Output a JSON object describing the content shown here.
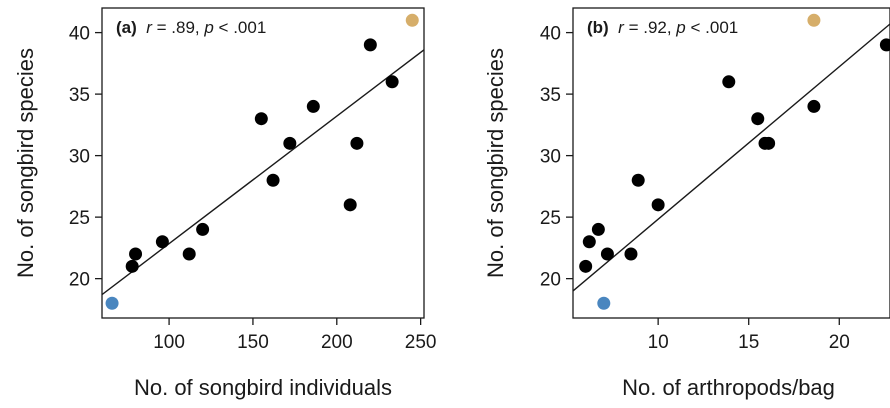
{
  "chart_data": [
    {
      "panel": "(a)",
      "type": "scatter",
      "annotation": {
        "tag": "(a)",
        "r_letter": "r",
        "r_text": " = .89, ",
        "p_letter": "p",
        "p_text": " < .001"
      },
      "xlabel": "No. of songbird individuals",
      "ylabel": "No. of songbird species",
      "xlim": [
        60,
        252
      ],
      "ylim": [
        16.8,
        42
      ],
      "xticks": [
        100,
        150,
        200,
        250
      ],
      "yticks": [
        20,
        25,
        30,
        35,
        40
      ],
      "grid": false,
      "points": [
        {
          "x": 66,
          "y": 18,
          "color": "#4a86bf"
        },
        {
          "x": 78,
          "y": 21,
          "color": "#000000"
        },
        {
          "x": 80,
          "y": 22,
          "color": "#000000"
        },
        {
          "x": 96,
          "y": 23,
          "color": "#000000"
        },
        {
          "x": 112,
          "y": 22,
          "color": "#000000"
        },
        {
          "x": 120,
          "y": 24,
          "color": "#000000"
        },
        {
          "x": 155,
          "y": 33,
          "color": "#000000"
        },
        {
          "x": 162,
          "y": 28,
          "color": "#000000"
        },
        {
          "x": 172,
          "y": 31,
          "color": "#000000"
        },
        {
          "x": 186,
          "y": 34,
          "color": "#000000"
        },
        {
          "x": 208,
          "y": 26,
          "color": "#000000"
        },
        {
          "x": 212,
          "y": 31,
          "color": "#000000"
        },
        {
          "x": 220,
          "y": 39,
          "color": "#000000"
        },
        {
          "x": 233,
          "y": 36,
          "color": "#000000"
        },
        {
          "x": 245,
          "y": 41,
          "color": "#d6ae6a"
        }
      ],
      "fit_line": {
        "x": [
          60,
          252
        ],
        "y": [
          18.7,
          38.6
        ]
      }
    },
    {
      "panel": "(b)",
      "type": "scatter",
      "annotation": {
        "tag": "(b)",
        "r_letter": "r",
        "r_text": " = .92, ",
        "p_letter": "p",
        "p_text": " < .001"
      },
      "xlabel": "No. of arthropods/bag",
      "ylabel": "No. of songbird species",
      "xlim": [
        5.3,
        22.8
      ],
      "ylim": [
        16.8,
        42
      ],
      "xticks": [
        10,
        15,
        20
      ],
      "yticks": [
        20,
        25,
        30,
        35,
        40
      ],
      "grid": false,
      "points": [
        {
          "x": 6.0,
          "y": 21,
          "color": "#000000"
        },
        {
          "x": 6.2,
          "y": 23,
          "color": "#000000"
        },
        {
          "x": 6.7,
          "y": 24,
          "color": "#000000"
        },
        {
          "x": 7.0,
          "y": 18,
          "color": "#4a86bf"
        },
        {
          "x": 7.2,
          "y": 22,
          "color": "#000000"
        },
        {
          "x": 8.5,
          "y": 22,
          "color": "#000000"
        },
        {
          "x": 8.9,
          "y": 28,
          "color": "#000000"
        },
        {
          "x": 10.0,
          "y": 26,
          "color": "#000000"
        },
        {
          "x": 13.9,
          "y": 36,
          "color": "#000000"
        },
        {
          "x": 15.5,
          "y": 33,
          "color": "#000000"
        },
        {
          "x": 15.9,
          "y": 31,
          "color": "#000000"
        },
        {
          "x": 16.1,
          "y": 31,
          "color": "#000000"
        },
        {
          "x": 18.6,
          "y": 34,
          "color": "#000000"
        },
        {
          "x": 18.6,
          "y": 41,
          "color": "#d6ae6a"
        },
        {
          "x": 22.6,
          "y": 39,
          "color": "#000000"
        }
      ],
      "fit_line": {
        "x": [
          5.3,
          22.8
        ],
        "y": [
          19.0,
          40.7
        ]
      }
    }
  ]
}
